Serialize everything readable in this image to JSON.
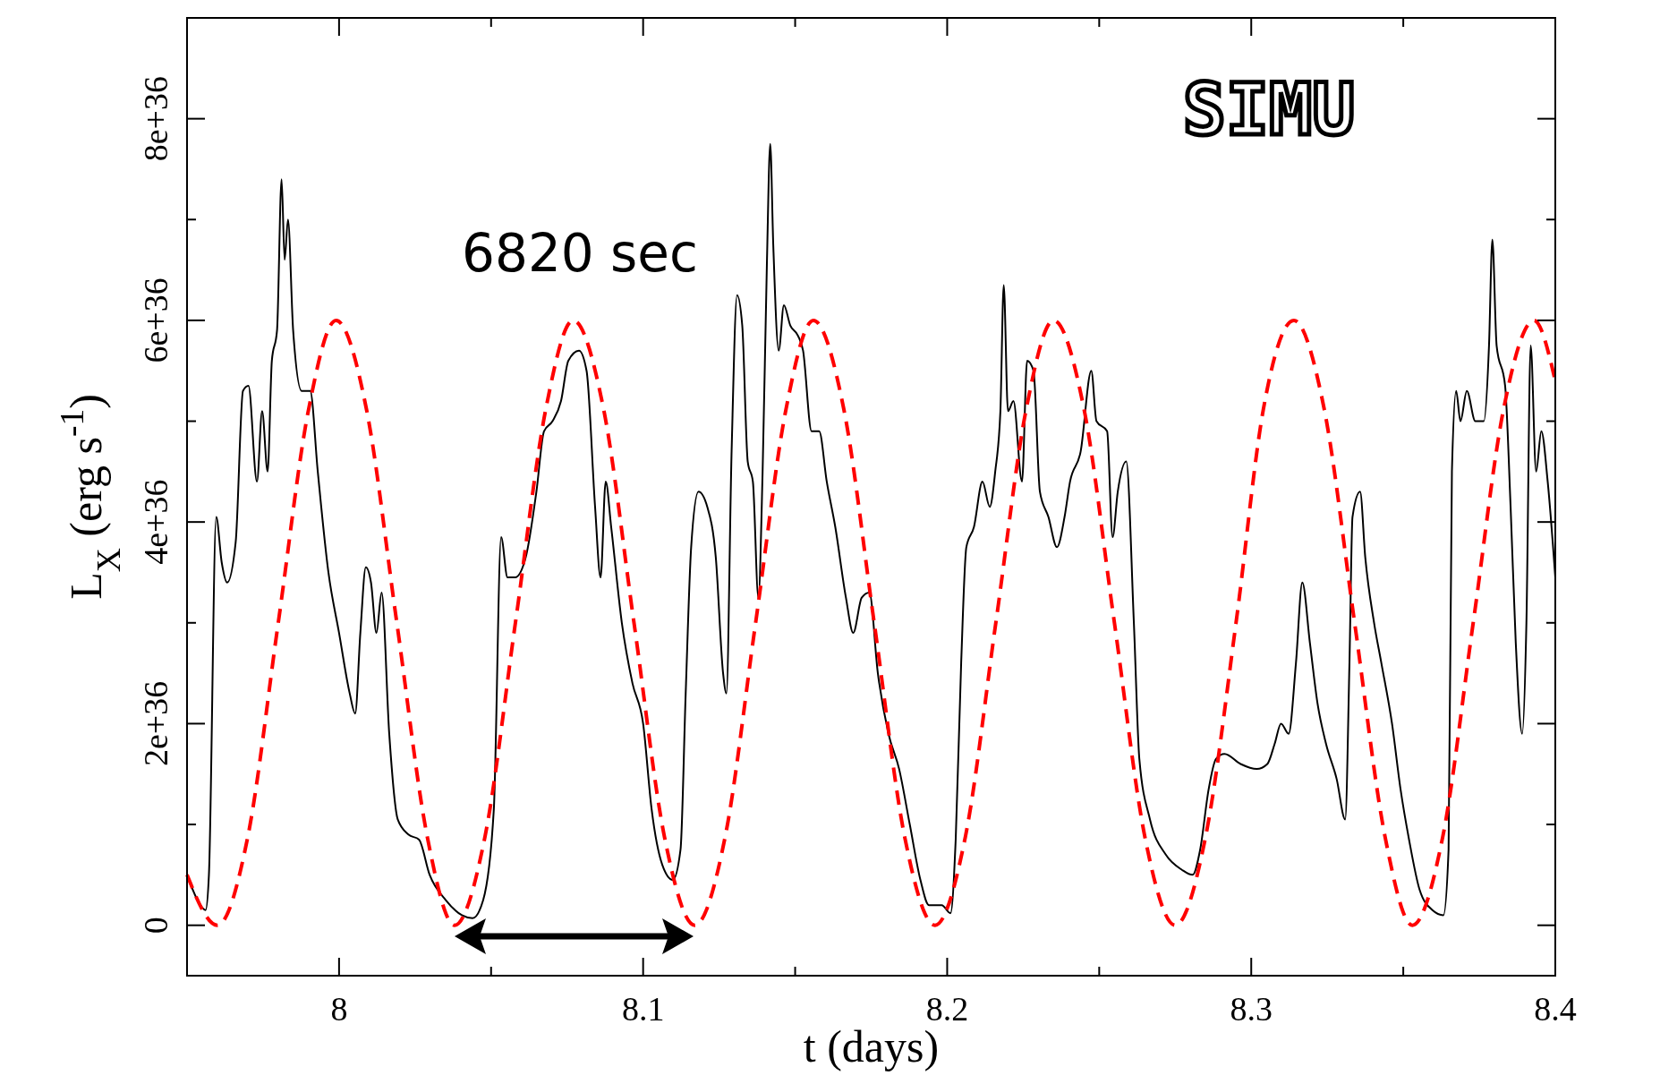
{
  "chart_data": {
    "type": "line",
    "xlabel": "t (days)",
    "ylabel": "L$_{X}$ (erg s$^{-1}$)",
    "xlim": [
      7.95,
      8.4
    ],
    "ylim": [
      -5e+35,
      9e+36
    ],
    "xticks": [
      8,
      {
        "value": 8.05,
        "label": null
      },
      8.1,
      {
        "value": 8.15,
        "label": null
      },
      8.2,
      {
        "value": 8.25,
        "label": null
      },
      8.3,
      {
        "value": 8.35,
        "label": null
      },
      8.4
    ],
    "yticks": [
      0,
      {
        "value": 1e+36,
        "label": null
      },
      {
        "value": 2e+36,
        "label": "2e+36"
      },
      {
        "value": 3e+36,
        "label": null
      },
      {
        "value": 4e+36,
        "label": "4e+36"
      },
      {
        "value": 5e+36,
        "label": null
      },
      {
        "value": 6e+36,
        "label": "6e+36"
      },
      {
        "value": 7e+36,
        "label": null
      },
      {
        "value": 8e+36,
        "label": "8e+36"
      }
    ],
    "annotations": [
      "6820 sec",
      "SIMU"
    ],
    "series": [
      {
        "color": "#000000",
        "line_style": "solid",
        "x": [
          7.95,
          7.9544,
          7.9561,
          7.9572,
          7.9596,
          7.9614,
          7.9632,
          7.966,
          7.9684,
          7.9702,
          7.973,
          7.9747,
          7.9765,
          7.9779,
          7.9796,
          7.9811,
          7.9821,
          7.9832,
          7.9849,
          7.9877,
          7.9905,
          7.993,
          7.9965,
          8.0,
          8.0035,
          8.0053,
          8.007,
          8.0088,
          8.0105,
          8.0123,
          8.014,
          8.0165,
          8.0193,
          8.0228,
          8.0263,
          8.0298,
          8.0351,
          8.0404,
          8.0439,
          8.0474,
          8.0509,
          8.0533,
          8.0554,
          8.0579,
          8.0614,
          8.0649,
          8.0674,
          8.0702,
          8.073,
          8.0754,
          8.0789,
          8.0814,
          8.0842,
          8.086,
          8.0877,
          8.0895,
          8.093,
          8.0965,
          8.1,
          8.1028,
          8.1063,
          8.1098,
          8.1123,
          8.114,
          8.1158,
          8.1182,
          8.1211,
          8.1239,
          8.1263,
          8.1274,
          8.1291,
          8.1309,
          8.1326,
          8.1344,
          8.1361,
          8.1379,
          8.1393,
          8.1407,
          8.1418,
          8.1428,
          8.1446,
          8.1463,
          8.1484,
          8.1509,
          8.1526,
          8.1554,
          8.1579,
          8.1604,
          8.1632,
          8.1667,
          8.1691,
          8.1719,
          8.1744,
          8.1772,
          8.1807,
          8.1842,
          8.1877,
          8.1912,
          8.194,
          8.1982,
          8.2011,
          8.2028,
          8.2046,
          8.2063,
          8.2088,
          8.2116,
          8.214,
          8.2158,
          8.2175,
          8.2186,
          8.22,
          8.2218,
          8.2246,
          8.2263,
          8.2284,
          8.2305,
          8.2333,
          8.2361,
          8.2386,
          8.2404,
          8.2439,
          8.2474,
          8.2491,
          8.2526,
          8.2544,
          8.2561,
          8.2589,
          8.2614,
          8.2632,
          8.2667,
          8.2719,
          8.2772,
          8.2807,
          8.2832,
          8.286,
          8.2884,
          8.2912,
          8.2965,
          8.3018,
          8.3053,
          8.3077,
          8.3098,
          8.3123,
          8.3147,
          8.3168,
          8.3193,
          8.3218,
          8.3246,
          8.3281,
          8.3309,
          8.3323,
          8.3333,
          8.3358,
          8.3375,
          8.3404,
          8.3428,
          8.3463,
          8.3491,
          8.3519,
          8.3554,
          8.3596,
          8.3632,
          8.3649,
          8.366,
          8.3674,
          8.3688,
          8.3709,
          8.3737,
          8.3765,
          8.3782,
          8.3793,
          8.3807,
          8.3835,
          8.3853,
          8.387,
          8.3891,
          8.3905,
          8.3919,
          8.3937,
          8.3954,
          8.3975,
          8.4
        ],
        "values": [
          5e+35,
          2e+35,
          1.5e+35,
          5e+35,
          4.05e+36,
          3.6e+36,
          3.4e+36,
          3.8e+36,
          5.3e+36,
          5.35e+36,
          4.4e+36,
          5.1e+36,
          4.5e+36,
          5.6e+36,
          5.9e+36,
          7.4e+36,
          6.6e+36,
          7e+36,
          5.9e+36,
          5.3e+36,
          5.3e+36,
          4.5e+36,
          3.5e+36,
          2.9e+36,
          2.3e+36,
          2.1e+36,
          2.9e+36,
          3.55e+36,
          3.4e+36,
          2.9e+36,
          3.3e+36,
          1.9e+36,
          1.05e+36,
          9e+35,
          8.5e+35,
          5e+35,
          2.5e+35,
          1e+35,
          7e+34,
          2.5e+35,
          1.15e+36,
          3.85e+36,
          3.45e+36,
          3.45e+36,
          3.65e+36,
          4.3e+36,
          4.9e+36,
          5e+36,
          5.2e+36,
          5.6e+36,
          5.7e+36,
          5.5e+36,
          4.15e+36,
          3.45e+36,
          4.4e+36,
          3.95e+36,
          3e+36,
          2.4e+36,
          2e+36,
          1.15e+36,
          6e+35,
          4.5e+35,
          7.5e+35,
          2.3e+36,
          3.75e+36,
          4.3e+36,
          4.15e+36,
          3.65e+36,
          2.5e+36,
          2.3e+36,
          4.7e+36,
          6.25e+36,
          5.95e+36,
          4.6e+36,
          4.4e+36,
          3.25e+36,
          4.5e+36,
          6.55e+36,
          7.75e+36,
          6.75e+36,
          5.7e+36,
          6.15e+36,
          5.95e+36,
          5.85e+36,
          5.7e+36,
          4.9e+36,
          4.9e+36,
          4.4e+36,
          3.95e+36,
          3.25e+36,
          2.9e+36,
          3.25e+36,
          3.3e+36,
          2.5e+36,
          1.9e+36,
          1.55e+36,
          1e+36,
          4.5e+35,
          2e+35,
          2e+35,
          1.2e+35,
          8.5e+35,
          2.6e+36,
          3.75e+36,
          3.95e+36,
          4.4e+36,
          4.15e+36,
          4.5e+36,
          5.1e+36,
          6.35e+36,
          5.1e+36,
          5.2e+36,
          4.4e+36,
          5.6e+36,
          5.5e+36,
          4.3e+36,
          4.05e+36,
          3.75e+36,
          4.05e+36,
          4.4e+36,
          4.7e+36,
          5.5e+36,
          5e+36,
          4.9e+36,
          3.85e+36,
          4.3e+36,
          4.6e+36,
          3e+36,
          1.65e+36,
          1.05e+36,
          7e+35,
          5.5e+35,
          5e+35,
          7.5e+35,
          1.35e+36,
          1.65e+36,
          1.7e+36,
          1.6e+36,
          1.55e+36,
          1.6e+36,
          1.8e+36,
          2e+36,
          1.9e+36,
          2.6e+36,
          3.4e+36,
          2.8e+36,
          2.2e+36,
          1.8e+36,
          1.45e+36,
          1.05e+36,
          2.6e+36,
          4.05e+36,
          4.3e+36,
          3.65e+36,
          3e+36,
          2.6e+36,
          2e+36,
          1.35e+36,
          8.5e+35,
          3.5e+35,
          1.5e+35,
          1e+35,
          7.5e+35,
          4.5e+36,
          5.3e+36,
          5e+36,
          5.3e+36,
          5e+36,
          5e+36,
          5.75e+36,
          6.8e+36,
          5.75e+36,
          5.35e+36,
          4.15e+36,
          2.8e+36,
          1.9e+36,
          3e+36,
          5.75e+36,
          4.5e+36,
          4.9e+36,
          4.4e+36,
          3.45e+36
        ]
      },
      {
        "color": "#ff0000",
        "line_style": "dashed",
        "x": [
          7.95,
          7.96,
          7.97,
          7.98,
          7.99,
          7.999,
          8.009,
          8.019,
          8.029,
          8.038,
          8.048,
          8.058,
          8.068,
          8.077,
          8.087,
          8.097,
          8.107,
          8.117,
          8.127,
          8.137,
          8.147,
          8.156,
          8.166,
          8.176,
          8.186,
          8.196,
          8.206,
          8.216,
          8.226,
          8.235,
          8.245,
          8.255,
          8.265,
          8.275,
          8.285,
          8.295,
          8.304,
          8.314,
          8.324,
          8.334,
          8.344,
          8.353,
          8.363,
          8.373,
          8.383,
          8.393,
          8.4
        ],
        "values": [
          5e+35,
          0,
          8.8e+35,
          3e+36,
          5.12e+36,
          6e+36,
          5.12e+36,
          3e+36,
          8.8e+35,
          0,
          8.8e+35,
          3e+36,
          5.12e+36,
          6e+36,
          5.12e+36,
          3e+36,
          8.8e+35,
          0,
          8.8e+35,
          3e+36,
          5.12e+36,
          6e+36,
          5.12e+36,
          3e+36,
          8.8e+35,
          0,
          8.8e+35,
          3e+36,
          5.12e+36,
          6e+36,
          5.12e+36,
          3e+36,
          8.8e+35,
          0,
          8.8e+35,
          3e+36,
          5.12e+36,
          6e+36,
          5.12e+36,
          3e+36,
          8.8e+35,
          0,
          8.8e+35,
          3e+36,
          5.12e+36,
          6e+36,
          5.4e+36
        ]
      }
    ]
  }
}
